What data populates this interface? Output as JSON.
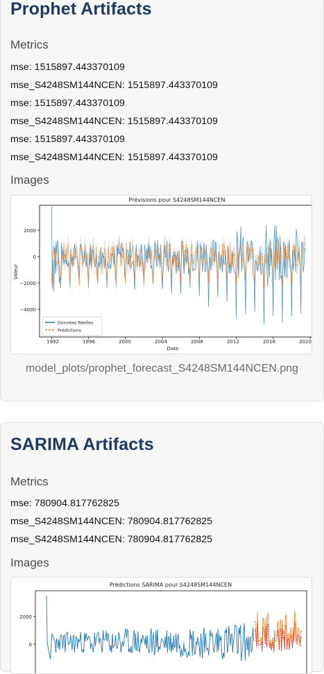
{
  "prophet": {
    "title": "Prophet Artifacts",
    "metrics_heading": "Metrics",
    "metrics": [
      "mse: 1515897.443370109",
      "mse_S4248SM144NCEN: 1515897.443370109",
      "mse: 1515897.443370109",
      "mse_S4248SM144NCEN: 1515897.443370109",
      "mse: 1515897.443370109",
      "mse_S4248SM144NCEN: 1515897.443370109"
    ],
    "images_heading": "Images",
    "caption": "model_plots/prophet_forecast_S4248SM144NCEN.png",
    "chart": {
      "title": "Prévisions pour S4248SM144NCEN",
      "xlabel": "Date",
      "ylabel": "Valeur",
      "legend": [
        "Données Réelles",
        "Prédictions"
      ],
      "xticks": [
        "1992",
        "1996",
        "2000",
        "2004",
        "2008",
        "2012",
        "2016",
        "2020"
      ],
      "yticks": [
        "2000",
        "0",
        "−2000",
        "−4000"
      ]
    }
  },
  "sarima": {
    "title": "SARIMA Artifacts",
    "metrics_heading": "Metrics",
    "metrics": [
      "mse: 780904.817762825",
      "mse_S4248SM144NCEN: 780904.817762825",
      "mse_S4248SM144NCEN: 780904.817762825"
    ],
    "images_heading": "Images",
    "chart": {
      "title": "Prédictions SARIMA pour S4248SM144NCEN",
      "yticks": [
        "2000",
        "0"
      ]
    }
  },
  "chart_data": [
    {
      "type": "line",
      "title": "Prévisions pour S4248SM144NCEN",
      "xlabel": "Date",
      "ylabel": "Valeur",
      "xlim": [
        1990.7,
        2020.3
      ],
      "ylim": [
        -5900,
        3600
      ],
      "grid": false,
      "legend_position": "bottom-left",
      "series": [
        {
          "name": "Données Réelles",
          "color": "#1f77b4",
          "x": [
            1992,
            1993,
            1994,
            1995,
            1996,
            1997,
            1998,
            1999,
            2000,
            2001,
            2002,
            2003,
            2004,
            2005,
            2006,
            2007,
            2008,
            2009,
            2010,
            2011,
            2012,
            2013,
            2014,
            2015,
            2016,
            2017,
            2018,
            2019
          ],
          "high": [
            3500,
            1100,
            1000,
            1000,
            1100,
            1100,
            1200,
            1100,
            1200,
            1100,
            1200,
            1300,
            1500,
            1500,
            1600,
            1500,
            1700,
            1300,
            1400,
            1500,
            2500,
            1700,
            1800,
            2900,
            2500,
            2400,
            2200,
            1700
          ],
          "low": [
            -3000,
            -2600,
            -2300,
            -2700,
            -2300,
            -2500,
            -2400,
            -2300,
            -2600,
            -2400,
            -2500,
            -2700,
            -3200,
            -3500,
            -3100,
            -3400,
            -4000,
            -3800,
            -4300,
            -4600,
            -4300,
            -4700,
            -5200,
            -5200,
            -5600,
            -5200,
            -4800,
            -4800
          ]
        },
        {
          "name": "Prédictions",
          "color": "#ff7f0e",
          "x": [
            1992,
            1993,
            1994,
            1995,
            1996,
            1997,
            1998,
            1999,
            2000,
            2001,
            2002,
            2003,
            2004,
            2005,
            2006,
            2007,
            2008,
            2009,
            2010,
            2011,
            2012,
            2013,
            2014,
            2015,
            2016,
            2017,
            2018,
            2019
          ],
          "high": [
            1000,
            1000,
            1000,
            900,
            1000,
            1000,
            900,
            1000,
            1000,
            1000,
            900,
            1000,
            1000,
            1000,
            1000,
            1000,
            1000,
            1000,
            1000,
            1000,
            1000,
            1000,
            1000,
            1000,
            1000,
            1000,
            1000,
            1000
          ],
          "low": [
            -2300,
            -2500,
            -2300,
            -2300,
            -2300,
            -2300,
            -2300,
            -2300,
            -2300,
            -2300,
            -2300,
            -2300,
            -2300,
            -2300,
            -2300,
            -2300,
            -2300,
            -2300,
            -2300,
            -2300,
            -2300,
            -2300,
            -2300,
            -2300,
            -2300,
            -2300,
            -2300,
            -2300
          ]
        }
      ]
    },
    {
      "type": "line",
      "title": "Prédictions SARIMA pour S4248SM144NCEN",
      "ylim": [
        -600,
        3300
      ],
      "series": [
        {
          "color": "#1f77b4",
          "peak": 3500
        },
        {
          "color": "#ff7f0e"
        },
        {
          "color": "#d62728"
        }
      ]
    }
  ]
}
